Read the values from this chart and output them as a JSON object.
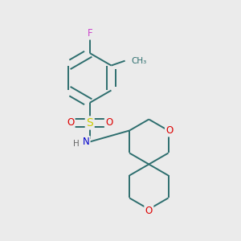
{
  "background_color": "#ebebeb",
  "bond_color": "#2d6e6e",
  "figsize": [
    3.0,
    3.0
  ],
  "dpi": 100,
  "atom_colors": {
    "F": "#cc44cc",
    "O": "#dd0000",
    "N": "#0000cc",
    "S": "#cccc00",
    "H": "#666666",
    "C": "#2d6e6e"
  },
  "lw": 1.4,
  "dbo": 0.018
}
